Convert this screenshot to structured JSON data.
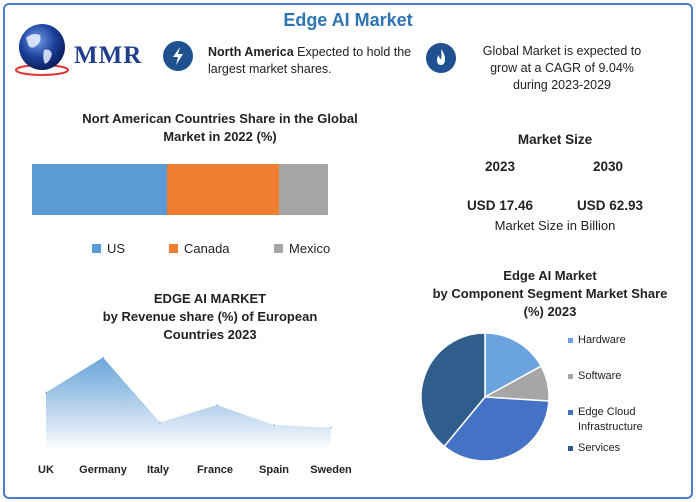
{
  "title": "Edge AI Market",
  "logo": {
    "text": "MMR",
    "icon": "globe-icon"
  },
  "info": {
    "north_america_bold": "North America",
    "north_america_rest": "Expected to hold the largest market shares.",
    "cagr_line1": "Global Market is expected to",
    "cagr_line2": "grow at a CAGR of 9.04%",
    "cagr_line3": "during 2023-2029",
    "icons": [
      "lightning-icon",
      "flame-icon"
    ]
  },
  "market_size": {
    "title": "Market Size",
    "year1": "2023",
    "year2": "2030",
    "value1": "USD 17.46",
    "value2": "USD 62.93",
    "unit": "Market Size in Billion"
  },
  "chart_data": [
    {
      "type": "bar",
      "subtype": "stacked-100",
      "title_line1": "Nort American Countries Share in the Global",
      "title_line2": "Market in 2022 (%)",
      "categories": [
        "US",
        "Canada",
        "Mexico"
      ],
      "values": [
        45.5,
        37.9,
        16.6
      ],
      "colors": [
        "#5b9bd5",
        "#ed7d31",
        "#a5a5a5"
      ],
      "legend_position": "bottom"
    },
    {
      "type": "area",
      "title_line1": "EDGE AI MARKET",
      "title_line2": "by Revenue share (%) of European",
      "title_line3": "Countries 2023",
      "categories": [
        "UK",
        "Germany",
        "Italy",
        "France",
        "Spain",
        "Sweden"
      ],
      "values": [
        23,
        37,
        11,
        18,
        10,
        9
      ],
      "ylim": [
        0,
        40
      ],
      "color": "#6fa8dc",
      "grid": false
    },
    {
      "type": "pie",
      "title_line1": "Edge AI Market",
      "title_line2": "by Component Segment Market Share",
      "title_line3": "(%) 2023",
      "categories": [
        "Hardware",
        "Software",
        "Edge Cloud Infrastructure",
        "Services"
      ],
      "values": [
        17,
        9,
        35,
        39
      ],
      "colors": [
        "#6aa3e0",
        "#a6a6a6",
        "#4472c4",
        "#2f5d8c"
      ],
      "legend_position": "right"
    }
  ]
}
